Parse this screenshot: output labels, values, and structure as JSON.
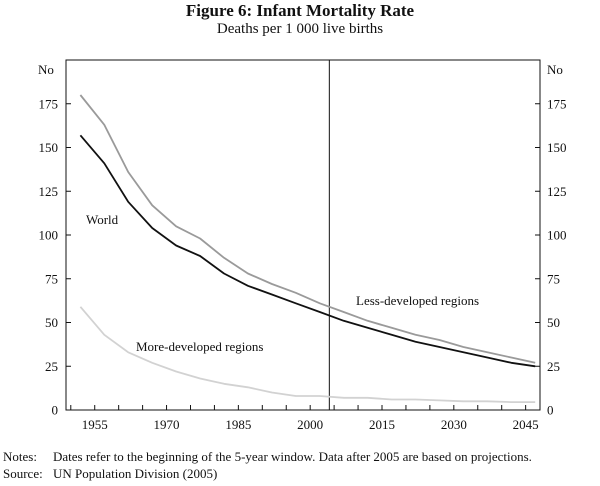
{
  "chart_data": {
    "type": "line",
    "title": "Figure 6: Infant Mortality Rate",
    "subtitle": "Deaths per 1 000 live births",
    "ylabel_left": "No",
    "ylabel_right": "No",
    "xlim": [
      1949,
      2048
    ],
    "ylim": [
      0,
      200
    ],
    "x_ticks": [
      1955,
      1970,
      1985,
      2000,
      2015,
      2030,
      2045
    ],
    "y_ticks": [
      0,
      25,
      50,
      75,
      100,
      125,
      150,
      175
    ],
    "vline_x": 2004,
    "grid": false,
    "series": [
      {
        "name": "Less-developed regions",
        "color": "#9a9a9a",
        "x": [
          1952,
          1957,
          1962,
          1967,
          1972,
          1977,
          1982,
          1987,
          1992,
          1997,
          2002,
          2007,
          2012,
          2017,
          2022,
          2027,
          2032,
          2037,
          2042,
          2047
        ],
        "y": [
          180,
          163,
          136,
          117,
          105,
          98,
          87,
          78,
          72,
          67,
          61,
          56,
          51,
          47,
          43,
          40,
          36,
          33,
          30,
          27
        ]
      },
      {
        "name": "World",
        "color": "#111111",
        "x": [
          1952,
          1957,
          1962,
          1967,
          1972,
          1977,
          1982,
          1987,
          1992,
          1997,
          2002,
          2007,
          2012,
          2017,
          2022,
          2027,
          2032,
          2037,
          2042,
          2047
        ],
        "y": [
          157,
          141,
          119,
          104,
          94,
          88,
          78,
          71,
          66,
          61,
          56,
          51,
          47,
          43,
          39,
          36,
          33,
          30,
          27,
          25
        ]
      },
      {
        "name": "More-developed regions",
        "color": "#d2d2d2",
        "x": [
          1952,
          1957,
          1962,
          1967,
          1972,
          1977,
          1982,
          1987,
          1992,
          1997,
          2002,
          2007,
          2012,
          2017,
          2022,
          2027,
          2032,
          2037,
          2042,
          2047
        ],
        "y": [
          59,
          43,
          33,
          27,
          22,
          18,
          15,
          13,
          10,
          8,
          8,
          7,
          7,
          6,
          6,
          5.5,
          5,
          5,
          4.5,
          4.5
        ]
      }
    ],
    "annotations": [
      {
        "text": "World",
        "series": "World"
      },
      {
        "text": "Less-developed regions",
        "series": "Less-developed regions"
      },
      {
        "text": "More-developed regions",
        "series": "More-developed regions"
      }
    ]
  },
  "notes": {
    "notes_label": "Notes:",
    "notes_text": "Dates refer to the beginning of the 5-year window. Data after 2005 are based on projections.",
    "source_label": "Source:",
    "source_text": "UN Population Division (2005)"
  }
}
